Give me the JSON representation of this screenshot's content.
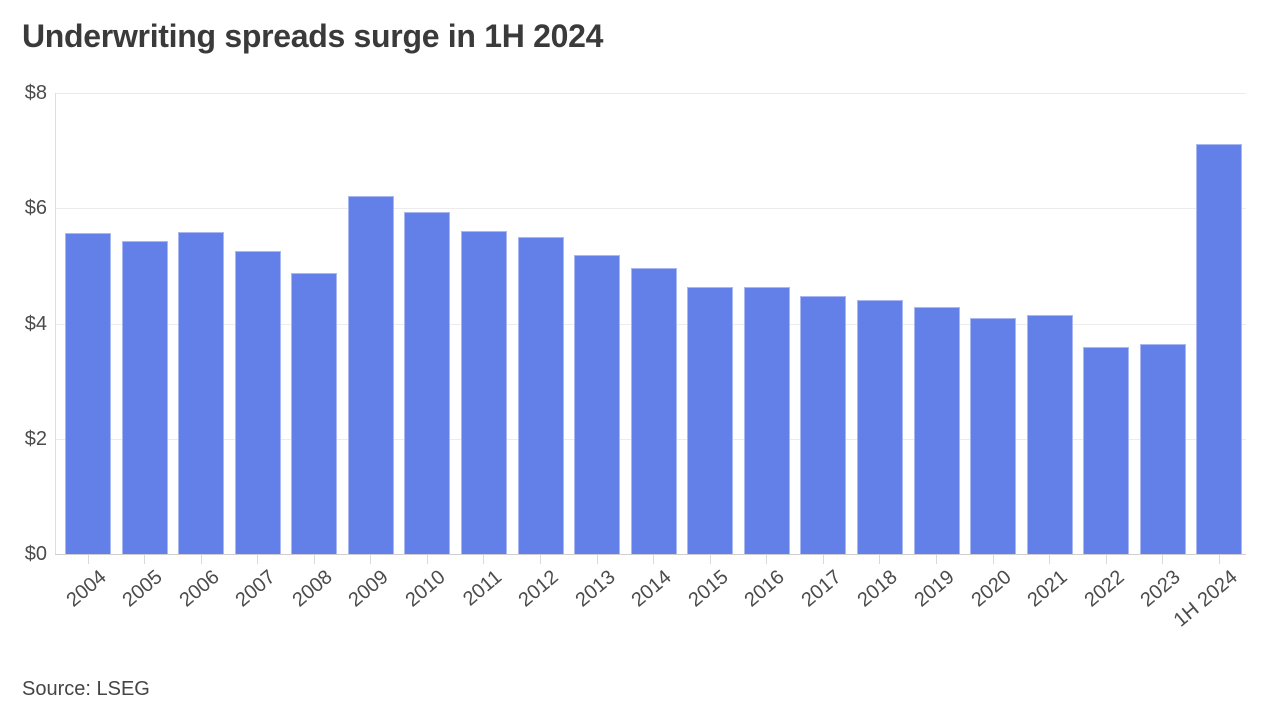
{
  "title": "Underwriting spreads surge in 1H 2024",
  "source": {
    "text": "Source: LSEG"
  },
  "colors": {
    "bar_fill": "#6380e8",
    "bar_border": "#a9b8f2",
    "gridline": "#ececec",
    "baseline": "#cfcfcf",
    "axis_line": "#dedede",
    "tick_mark": "#d9d9d9",
    "title_text": "#3a3a3a",
    "tick_text": "#4b4b4b",
    "source_text": "#454545"
  },
  "chart_data": {
    "type": "bar",
    "title": "Underwriting spreads surge in 1H 2024",
    "xlabel": "",
    "ylabel": "",
    "ylim": [
      0,
      8
    ],
    "yticks": [
      0,
      2,
      4,
      6,
      8
    ],
    "ytick_labels": [
      "$0",
      "$2",
      "$4",
      "$6",
      "$8"
    ],
    "grid": "horizontal",
    "legend_position": "none",
    "x_label_rotation_deg": -40,
    "categories": [
      "2004",
      "2005",
      "2006",
      "2007",
      "2008",
      "2009",
      "2010",
      "2011",
      "2012",
      "2013",
      "2014",
      "2015",
      "2016",
      "2017",
      "2018",
      "2019",
      "2020",
      "2021",
      "2022",
      "2023",
      "1H 2024"
    ],
    "values": [
      5.57,
      5.44,
      5.58,
      5.25,
      4.87,
      6.21,
      5.93,
      5.6,
      5.5,
      5.19,
      4.97,
      4.63,
      4.64,
      4.48,
      4.41,
      4.29,
      4.1,
      4.15,
      3.6,
      3.64,
      7.11
    ],
    "source": "Source: LSEG"
  }
}
